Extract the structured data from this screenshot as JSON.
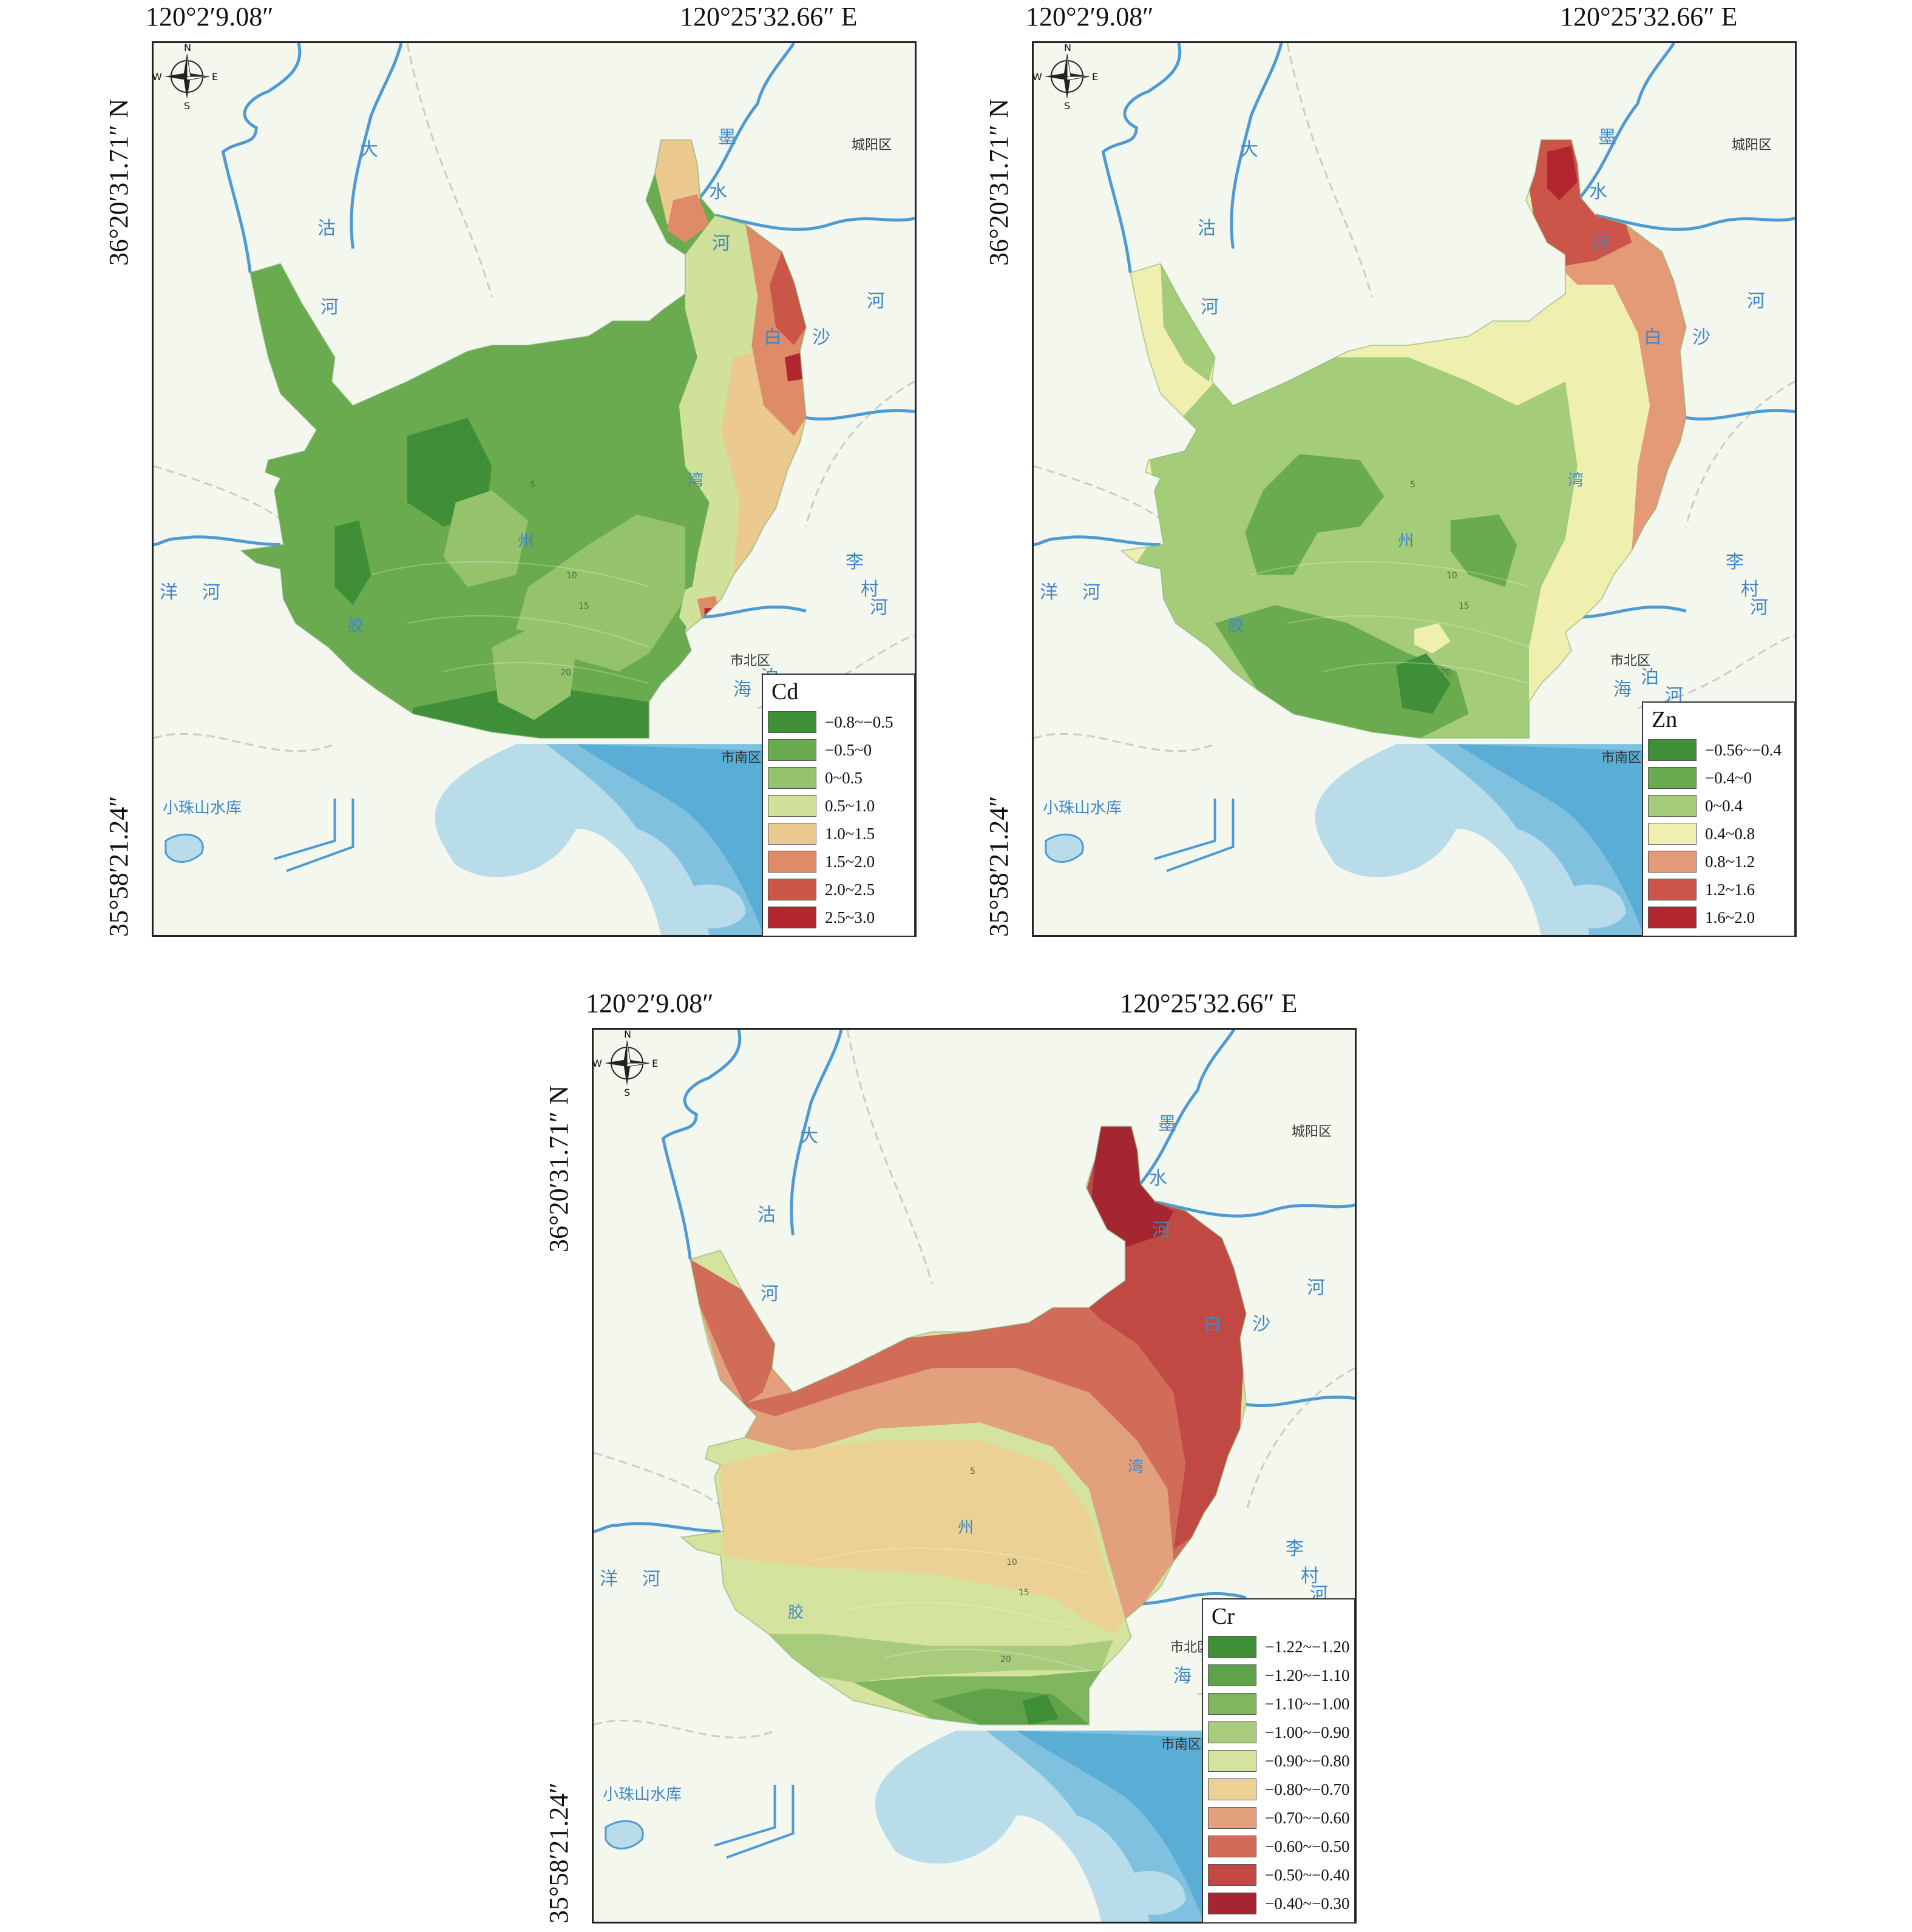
{
  "coords": {
    "lon_west": "120°2′9.08″",
    "lon_east": "120°25′32.66″ E",
    "lat_north": "36°20′31.71″ N",
    "lat_south": "35°58′21.24″"
  },
  "compass": {
    "n": "N",
    "s": "S",
    "e": "E",
    "w": "W"
  },
  "places": {
    "chengyang": "城阳区",
    "shibei": "市北区",
    "shinan": "市南区",
    "xiaozhushan": "小珠山水库"
  },
  "rivers": {
    "dagu": [
      "大",
      "沽",
      "河"
    ],
    "moshui": [
      "墨",
      "水",
      "河"
    ],
    "baisha": [
      "白",
      "沙",
      "河"
    ],
    "licun": [
      "李",
      "村",
      "河"
    ],
    "haibo": [
      "海",
      "泊",
      "河"
    ],
    "yang": [
      "洋",
      "河"
    ]
  },
  "bay": [
    "胶",
    "州",
    "湾"
  ],
  "depths": [
    "5",
    "10",
    "15",
    "20"
  ],
  "panels": [
    {
      "element": "Cd",
      "legend": [
        {
          "label": "−0.8~−0.5",
          "color": "#3f8f38"
        },
        {
          "label": "−0.5~0",
          "color": "#6aab50"
        },
        {
          "label": "0~0.5",
          "color": "#94c36c"
        },
        {
          "label": "0.5~1.0",
          "color": "#cfe19a"
        },
        {
          "label": "1.0~1.5",
          "color": "#ecc98e"
        },
        {
          "label": "1.5~2.0",
          "color": "#e08b68"
        },
        {
          "label": "2.0~2.5",
          "color": "#c95647"
        },
        {
          "label": "2.5~3.0",
          "color": "#b2262f"
        }
      ]
    },
    {
      "element": "Zn",
      "legend": [
        {
          "label": "−0.56~−0.4",
          "color": "#3f8f38"
        },
        {
          "label": "−0.4~0",
          "color": "#6aab50"
        },
        {
          "label": "0~0.4",
          "color": "#a5cc78"
        },
        {
          "label": "0.4~0.8",
          "color": "#eff0b0"
        },
        {
          "label": "0.8~1.2",
          "color": "#e49a76"
        },
        {
          "label": "1.2~1.6",
          "color": "#cc5448"
        },
        {
          "label": "1.6~2.0",
          "color": "#b2262f"
        }
      ]
    },
    {
      "element": "Cr",
      "legend": [
        {
          "label": "−1.22~−1.20",
          "color": "#3f8f38"
        },
        {
          "label": "−1.20~−1.10",
          "color": "#5fa24a"
        },
        {
          "label": "−1.10~−1.00",
          "color": "#7fb65e"
        },
        {
          "label": "−1.00~−0.90",
          "color": "#a8cc7c"
        },
        {
          "label": "−0.90~−0.80",
          "color": "#d4e39e"
        },
        {
          "label": "−0.80~−0.70",
          "color": "#ebd294"
        },
        {
          "label": "−0.70~−0.60",
          "color": "#e3a07c"
        },
        {
          "label": "−0.60~−0.50",
          "color": "#d06c57"
        },
        {
          "label": "−0.50~−0.40",
          "color": "#c04a43"
        },
        {
          "label": "−0.40~−0.30",
          "color": "#a52530"
        }
      ]
    }
  ]
}
